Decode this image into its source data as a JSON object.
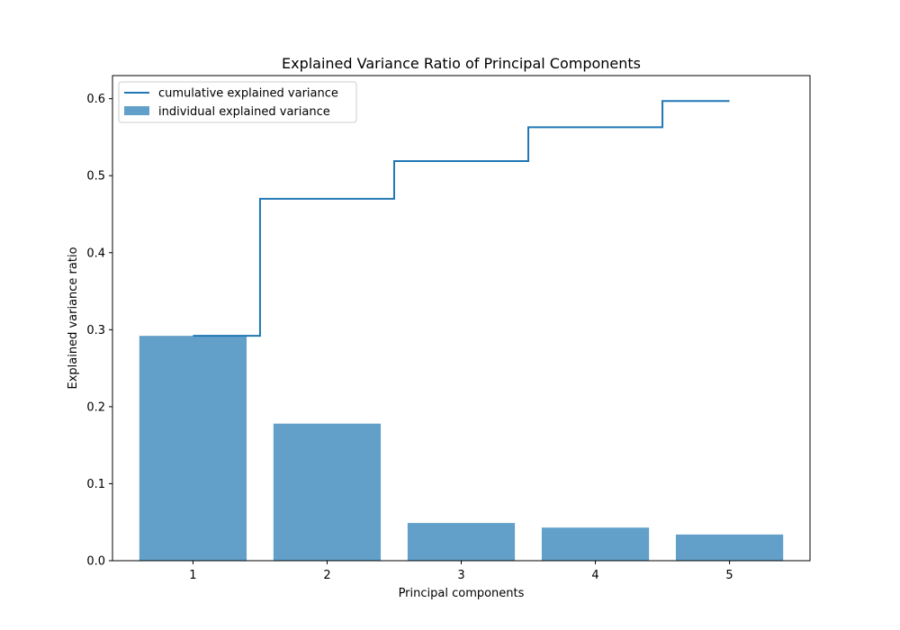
{
  "chart_data": {
    "type": "bar",
    "title": "Explained Variance Ratio of Principal Components",
    "xlabel": "Principal components",
    "ylabel": "Explained variance ratio",
    "categories": [
      "1",
      "2",
      "3",
      "4",
      "5"
    ],
    "x": [
      1,
      2,
      3,
      4,
      5
    ],
    "ylim": [
      0,
      0.63
    ],
    "yticks": [
      "0.0",
      "0.1",
      "0.2",
      "0.3",
      "0.4",
      "0.5",
      "0.6"
    ],
    "grid": false,
    "legend_position": "top-left",
    "series": [
      {
        "name": "individual explained variance",
        "type": "bar",
        "color": "#1f77b4",
        "opacity": 0.7,
        "values": [
          0.292,
          0.178,
          0.049,
          0.043,
          0.034
        ]
      },
      {
        "name": "cumulative explained variance",
        "type": "step",
        "color": "#1f77b4",
        "values": [
          0.292,
          0.47,
          0.519,
          0.563,
          0.597
        ]
      }
    ]
  }
}
